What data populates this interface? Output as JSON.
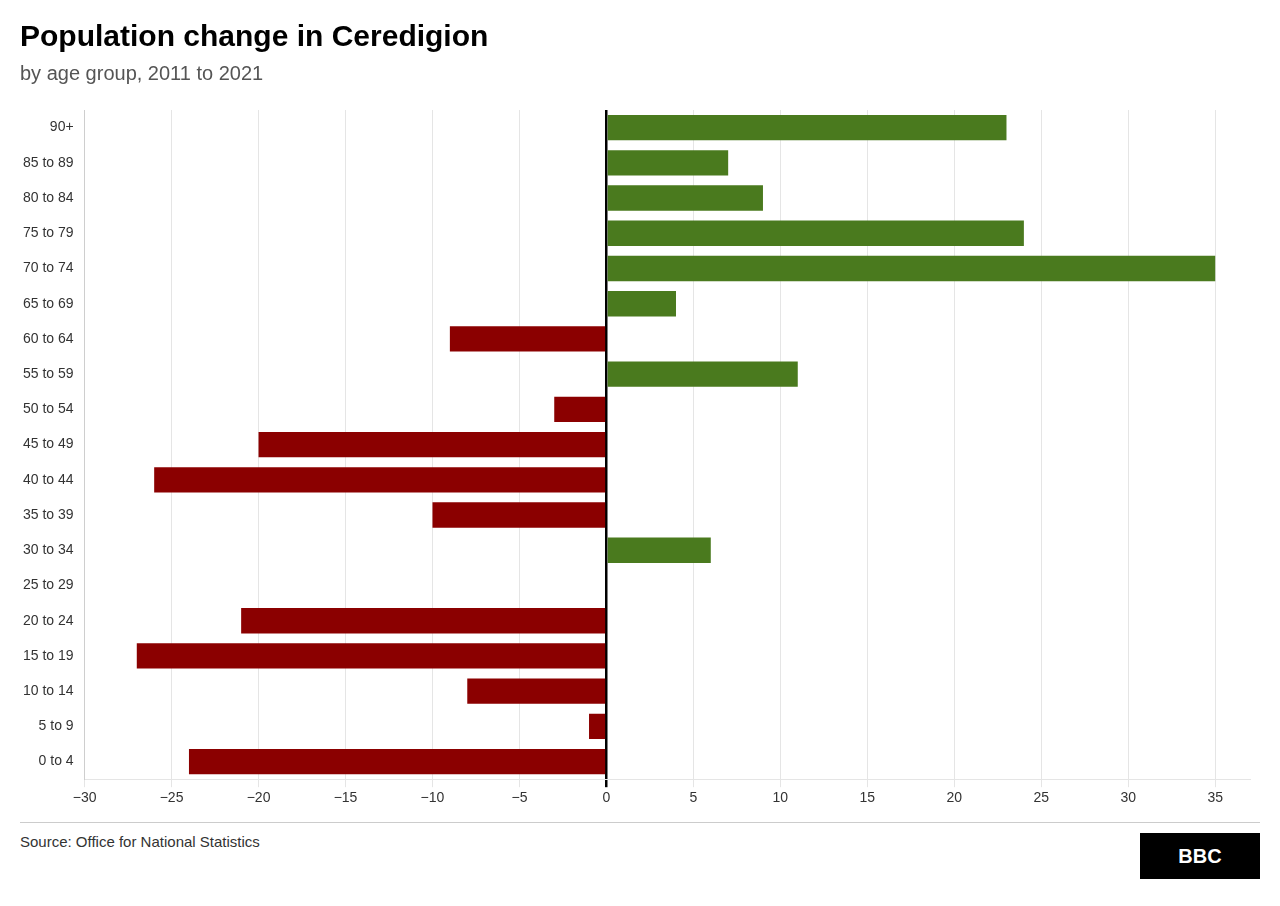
{
  "chart_data": {
    "type": "bar",
    "orientation": "horizontal",
    "title": "Population change in Ceredigion",
    "subtitle": "by age group, 2011 to 2021",
    "source": "Source: Office for National Statistics",
    "logo": "BBC",
    "categories": [
      "90+",
      "85 to 89",
      "80 to 84",
      "75 to 79",
      "70 to 74",
      "65 to 69",
      "60 to 64",
      "55 to 59",
      "50 to 54",
      "45 to 49",
      "40 to 44",
      "35 to 39",
      "30 to 34",
      "25 to 29",
      "20 to 24",
      "15 to 19",
      "10 to 14",
      "5 to 9",
      "0 to 4"
    ],
    "values": [
      23,
      7,
      9,
      24,
      35,
      4,
      -9,
      11,
      -3,
      -20,
      -26,
      -10,
      6,
      0,
      -21,
      -27,
      -8,
      -1,
      -24
    ],
    "colors": [
      "#4a7a1e",
      "#4a7a1e",
      "#4a7a1e",
      "#4a7a1e",
      "#4a7a1e",
      "#4a7a1e",
      "#8b0000",
      "#4a7a1e",
      "#8b0000",
      "#8b0000",
      "#8b0000",
      "#8b0000",
      "#4a7a1e",
      "#4a7a1e",
      "#8b0000",
      "#8b0000",
      "#8b0000",
      "#8b0000",
      "#8b0000"
    ],
    "xlim": [
      -30,
      37
    ],
    "xticks": [
      {
        "value": -30,
        "label": "−30"
      },
      {
        "value": -25,
        "label": "−25"
      },
      {
        "value": -20,
        "label": "−20"
      },
      {
        "value": -15,
        "label": "−15"
      },
      {
        "value": -10,
        "label": "−10"
      },
      {
        "value": -5,
        "label": "−5"
      },
      0,
      5,
      10,
      15,
      20,
      25,
      30,
      35
    ],
    "grid": true
  }
}
